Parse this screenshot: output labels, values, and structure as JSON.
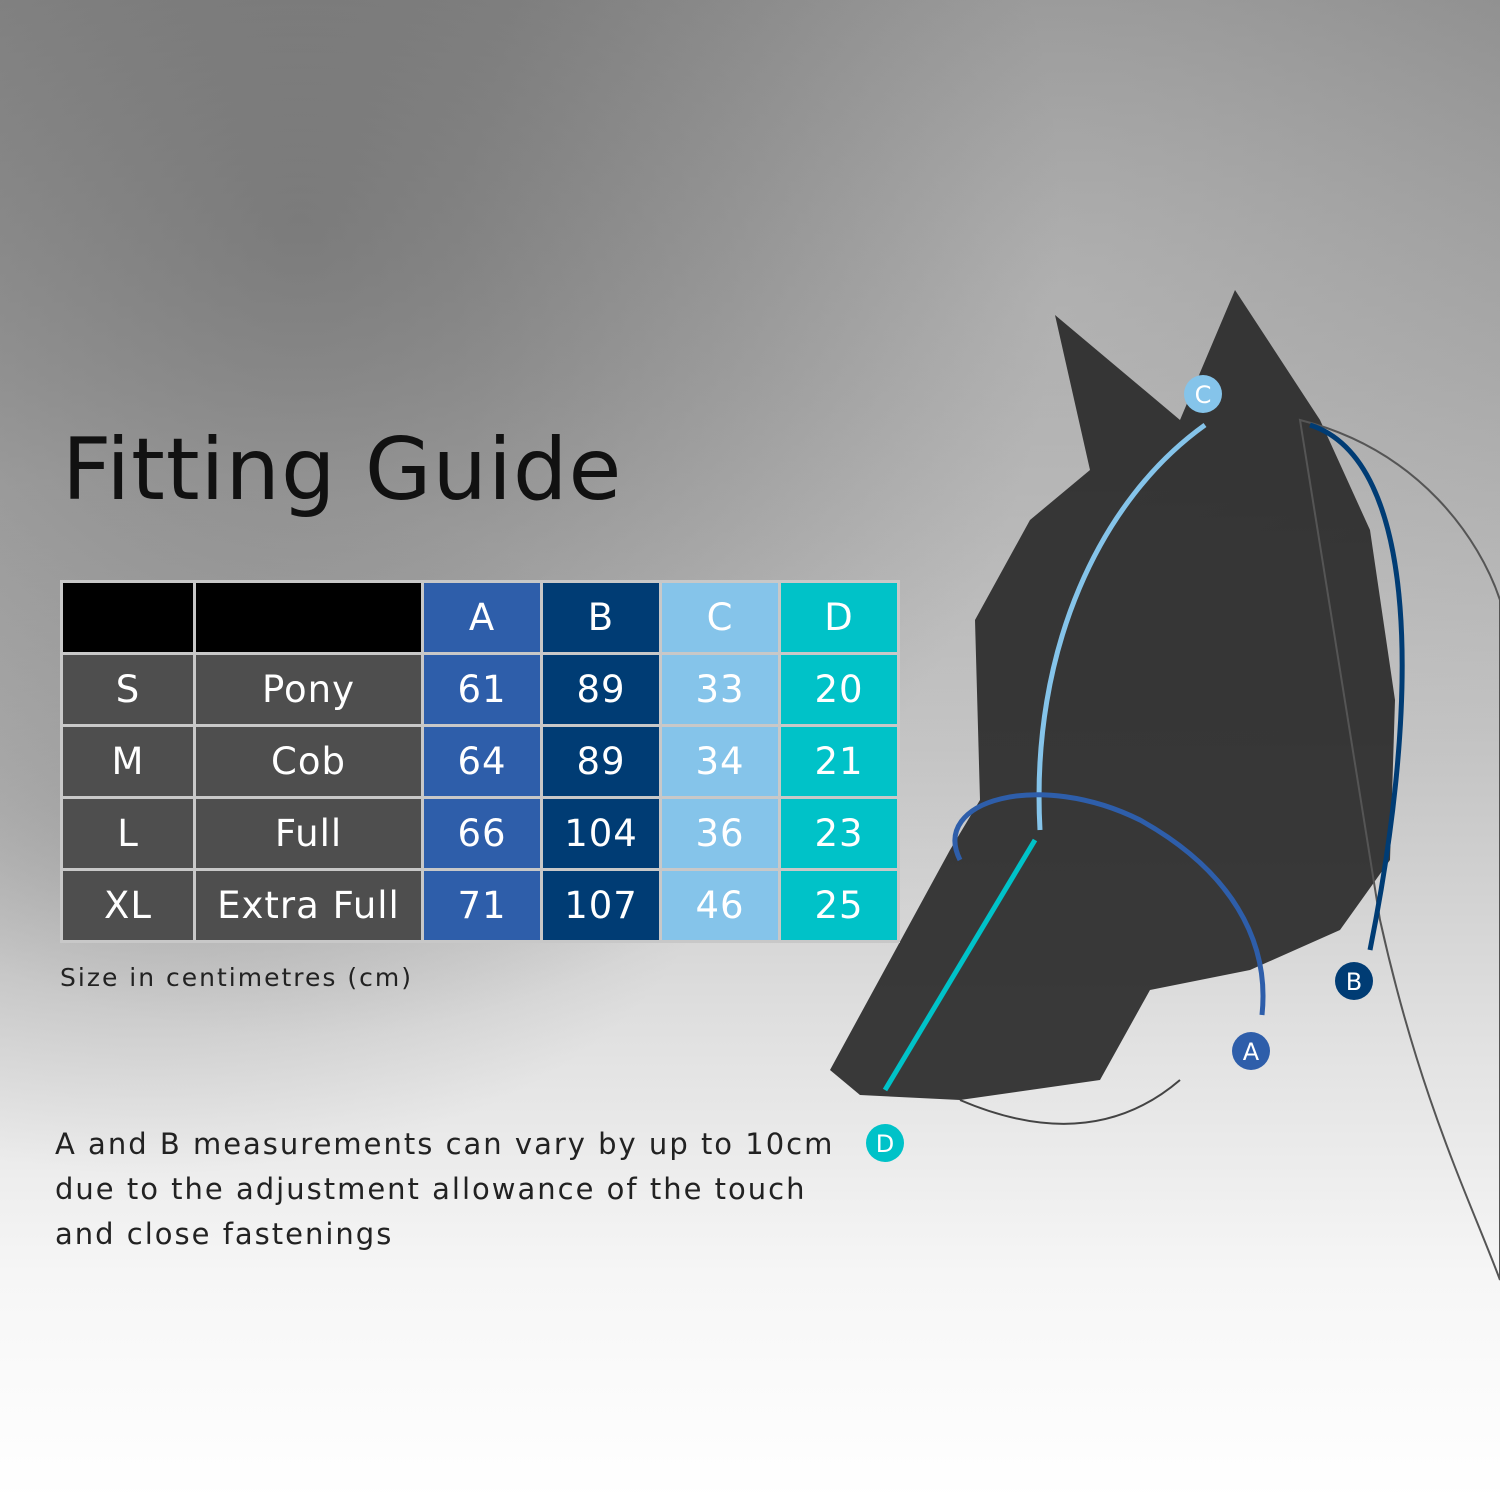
{
  "title": "Fitting Guide",
  "table": {
    "headers": [
      "",
      "",
      "A",
      "B",
      "C",
      "D"
    ],
    "rows": [
      {
        "size": "S",
        "type": "Pony",
        "A": "61",
        "B": "89",
        "C": "33",
        "D": "20"
      },
      {
        "size": "M",
        "type": "Cob",
        "A": "64",
        "B": "89",
        "C": "34",
        "D": "21"
      },
      {
        "size": "L",
        "type": "Full",
        "A": "66",
        "B": "104",
        "C": "36",
        "D": "23"
      },
      {
        "size": "XL",
        "type": "Extra Full",
        "A": "71",
        "B": "107",
        "C": "46",
        "D": "25"
      }
    ]
  },
  "units_note": "Size in centimetres (cm)",
  "footnote": "A and B measurements can vary by up to 10cm due to the adjustment allowance of the touch and close fastenings",
  "diagram": {
    "markers": [
      "A",
      "B",
      "C",
      "D"
    ],
    "colors": {
      "A": "#2e5eaa",
      "B": "#003c74",
      "C": "#85c4ea",
      "D": "#00c2c8"
    }
  }
}
